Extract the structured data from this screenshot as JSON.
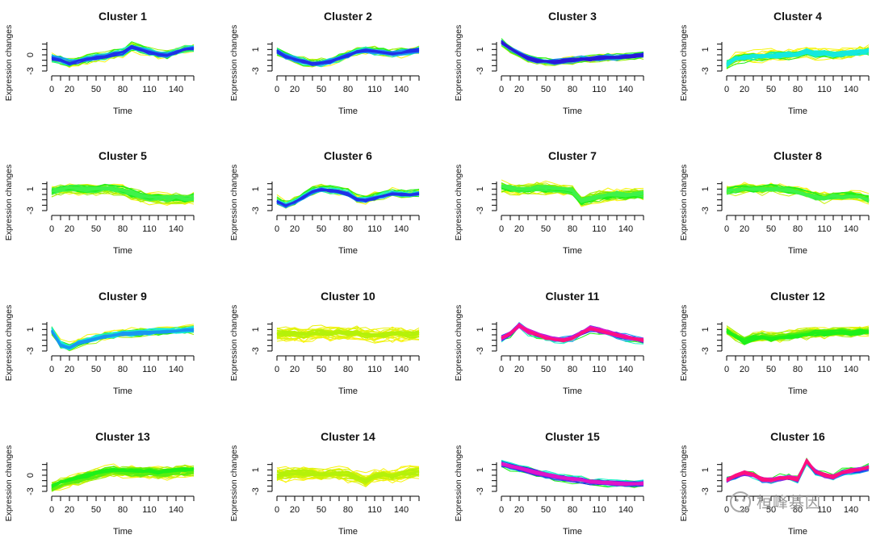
{
  "chart_data": {
    "type": "line",
    "layout": "4x4 grid of small multiples",
    "shared": {
      "xlabel": "Time",
      "ylabel": "Expression changes",
      "x_ticks": [
        0,
        20,
        50,
        80,
        110,
        140
      ],
      "x_range": [
        0,
        160
      ],
      "y_range": [
        -3,
        3
      ],
      "time_points": [
        0,
        10,
        20,
        30,
        40,
        50,
        60,
        70,
        80,
        90,
        100,
        110,
        120,
        130,
        140,
        150,
        160
      ],
      "color_scale": "membership, low = yellow -> green -> cyan -> blue -> high = magenta"
    },
    "panels": [
      {
        "title": "Cluster 1",
        "y_ticks": [
          "0",
          "-3"
        ],
        "n_lines": 34,
        "noise": 0.35,
        "spread": 0.5,
        "colors": [
          "#f6f50c",
          "#9af00a",
          "#1ef01a",
          "#19f2c6",
          "#1a96f0",
          "#2030e8"
        ],
        "profile": [
          -0.5,
          -0.9,
          -1.5,
          -1.1,
          -0.7,
          -0.5,
          -0.3,
          0.2,
          0.5,
          1.6,
          1.0,
          0.6,
          0.2,
          0.0,
          0.6,
          1.1,
          1.3
        ]
      },
      {
        "title": "Cluster 2",
        "y_ticks": [
          "1",
          "-3"
        ],
        "n_lines": 34,
        "noise": 0.35,
        "spread": 0.5,
        "colors": [
          "#f6f50c",
          "#9af00a",
          "#1ef01a",
          "#19f2c6",
          "#1a96f0",
          "#2030e8"
        ],
        "profile": [
          0.7,
          -0.2,
          -0.8,
          -1.3,
          -1.6,
          -1.5,
          -1.2,
          -0.6,
          0.0,
          0.6,
          0.8,
          0.7,
          0.5,
          0.3,
          0.4,
          0.7,
          0.9
        ]
      },
      {
        "title": "Cluster 3",
        "y_ticks": [
          "1",
          "-3"
        ],
        "n_lines": 36,
        "noise": 0.3,
        "spread": 0.45,
        "colors": [
          "#f6f50c",
          "#9af00a",
          "#1ef01a",
          "#19f2c6",
          "#1a96f0",
          "#2030e8",
          "#2a18d8"
        ],
        "profile": [
          2.4,
          1.2,
          0.2,
          -0.5,
          -1.0,
          -1.2,
          -1.3,
          -1.1,
          -1.0,
          -0.7,
          -0.8,
          -0.6,
          -0.4,
          -0.5,
          -0.3,
          -0.1,
          0.0
        ]
      },
      {
        "title": "Cluster 4",
        "y_ticks": [
          "1",
          "-3"
        ],
        "n_lines": 36,
        "noise": 0.45,
        "spread": 0.6,
        "colors": [
          "#f6f50c",
          "#c8f208",
          "#58ee10",
          "#1ef01a",
          "#19f2c6",
          "#14e8e0"
        ],
        "profile": [
          -1.8,
          -0.8,
          -0.6,
          -0.4,
          -0.3,
          -0.2,
          -0.2,
          0.0,
          0.1,
          0.6,
          0.1,
          0.1,
          0.0,
          0.1,
          0.3,
          0.5,
          0.6
        ]
      },
      {
        "title": "Cluster 5",
        "y_ticks": [
          "1",
          "-3"
        ],
        "n_lines": 38,
        "noise": 0.45,
        "spread": 0.7,
        "colors": [
          "#f6f50c",
          "#c8f208",
          "#9af00a",
          "#58ee10",
          "#1ef01a",
          "#3ff24a"
        ],
        "profile": [
          0.6,
          0.9,
          1.2,
          1.1,
          0.9,
          1.0,
          1.2,
          1.0,
          0.8,
          0.2,
          -0.3,
          -0.6,
          -0.5,
          -0.7,
          -0.5,
          -0.8,
          -0.6
        ]
      },
      {
        "title": "Cluster 6",
        "y_ticks": [
          "1",
          "-3"
        ],
        "n_lines": 34,
        "noise": 0.35,
        "spread": 0.5,
        "colors": [
          "#f6f50c",
          "#9af00a",
          "#1ef01a",
          "#19f2c6",
          "#1a96f0",
          "#2030e8"
        ],
        "profile": [
          -1.2,
          -2.0,
          -1.4,
          -0.4,
          0.6,
          1.0,
          0.8,
          0.6,
          0.2,
          -0.8,
          -1.0,
          -0.6,
          -0.2,
          0.2,
          0.1,
          0.0,
          0.2
        ]
      },
      {
        "title": "Cluster 7",
        "y_ticks": [
          "1",
          "-3"
        ],
        "n_lines": 38,
        "noise": 0.45,
        "spread": 0.6,
        "colors": [
          "#f6f50c",
          "#c8f208",
          "#9af00a",
          "#58ee10",
          "#1ef01a",
          "#3ff24a"
        ],
        "profile": [
          1.4,
          1.1,
          0.9,
          1.0,
          1.2,
          1.1,
          1.0,
          0.9,
          0.6,
          -1.2,
          -0.8,
          -0.4,
          -0.2,
          0.0,
          -0.2,
          0.1,
          0.0
        ]
      },
      {
        "title": "Cluster 8",
        "y_ticks": [
          "1",
          "-3"
        ],
        "n_lines": 38,
        "noise": 0.45,
        "spread": 0.6,
        "colors": [
          "#f6f50c",
          "#c8f208",
          "#9af00a",
          "#58ee10",
          "#1ef01a",
          "#3ff24a"
        ],
        "profile": [
          0.6,
          0.8,
          1.1,
          1.0,
          0.9,
          1.2,
          1.0,
          0.8,
          0.5,
          0.0,
          -0.4,
          -0.6,
          -0.3,
          -0.4,
          -0.2,
          -0.5,
          -1.0
        ]
      },
      {
        "title": "Cluster 9",
        "y_ticks": [
          "1",
          "-3"
        ],
        "n_lines": 36,
        "noise": 0.35,
        "spread": 0.5,
        "colors": [
          "#f6f50c",
          "#9af00a",
          "#1ef01a",
          "#19f2c6",
          "#14e8e0",
          "#1a96f0"
        ],
        "profile": [
          0.8,
          -1.8,
          -2.4,
          -1.5,
          -1.0,
          -0.6,
          -0.3,
          0.0,
          0.2,
          0.3,
          0.4,
          0.5,
          0.6,
          0.7,
          0.8,
          0.9,
          1.0
        ]
      },
      {
        "title": "Cluster 10",
        "y_ticks": [
          "1",
          "-3"
        ],
        "n_lines": 34,
        "noise": 0.55,
        "spread": 0.7,
        "colors": [
          "#f8f30c",
          "#eaf20c",
          "#d8f30a",
          "#c8f208",
          "#b4f10a"
        ],
        "profile": [
          0.2,
          0.3,
          0.2,
          0.0,
          0.3,
          0.4,
          0.2,
          0.3,
          0.2,
          0.4,
          0.0,
          -0.2,
          0.0,
          0.2,
          0.1,
          0.0,
          0.2
        ]
      },
      {
        "title": "Cluster 11",
        "y_ticks": [
          "1",
          "-3"
        ],
        "n_lines": 34,
        "noise": 0.28,
        "spread": 0.4,
        "colors": [
          "#1ef01a",
          "#19f2c6",
          "#1a96f0",
          "#2030e8",
          "#8a20e0",
          "#e014c8",
          "#ff1080"
        ],
        "profile": [
          -0.6,
          0.2,
          1.8,
          0.6,
          0.0,
          -0.5,
          -0.8,
          -1.0,
          -0.6,
          0.4,
          1.2,
          0.8,
          0.4,
          0.0,
          -0.4,
          -0.8,
          -1.0
        ]
      },
      {
        "title": "Cluster 12",
        "y_ticks": [
          "1",
          "-3"
        ],
        "n_lines": 36,
        "noise": 0.45,
        "spread": 0.6,
        "colors": [
          "#f6f50c",
          "#c8f208",
          "#9af00a",
          "#58ee10",
          "#1ef01a"
        ],
        "profile": [
          0.8,
          -0.2,
          -1.2,
          -0.6,
          -0.4,
          -0.6,
          -0.4,
          -0.2,
          0.0,
          0.2,
          0.4,
          0.3,
          0.4,
          0.5,
          0.4,
          0.6,
          0.5
        ]
      },
      {
        "title": "Cluster 13",
        "y_ticks": [
          "0",
          "-3"
        ],
        "n_lines": 38,
        "noise": 0.45,
        "spread": 0.7,
        "colors": [
          "#f6f50c",
          "#c8f208",
          "#9af00a",
          "#58ee10",
          "#1ef01a"
        ],
        "profile": [
          -2.2,
          -1.4,
          -1.0,
          -0.6,
          -0.2,
          0.3,
          0.6,
          0.8,
          0.8,
          0.7,
          0.6,
          0.7,
          0.5,
          0.6,
          0.8,
          0.9,
          1.0
        ]
      },
      {
        "title": "Cluster 14",
        "y_ticks": [
          "1",
          "-3"
        ],
        "n_lines": 32,
        "noise": 0.55,
        "spread": 0.7,
        "colors": [
          "#f8f30c",
          "#eaf20c",
          "#d8f30a",
          "#c8f208",
          "#b4f10a"
        ],
        "profile": [
          0.0,
          0.2,
          0.3,
          0.4,
          0.2,
          0.1,
          0.3,
          0.2,
          0.1,
          -0.4,
          -1.0,
          -0.2,
          0.0,
          -0.2,
          0.2,
          0.4,
          0.6
        ]
      },
      {
        "title": "Cluster 15",
        "y_ticks": [
          "1",
          "-3"
        ],
        "n_lines": 34,
        "noise": 0.28,
        "spread": 0.45,
        "colors": [
          "#1ef01a",
          "#19f2c6",
          "#14e8e0",
          "#1a96f0",
          "#2030e8",
          "#8a20e0",
          "#e014c8"
        ],
        "profile": [
          2.0,
          1.6,
          1.2,
          0.8,
          0.4,
          0.0,
          -0.3,
          -0.6,
          -0.8,
          -1.0,
          -1.3,
          -1.4,
          -1.5,
          -1.6,
          -1.7,
          -1.7,
          -1.6
        ]
      },
      {
        "title": "Cluster 16",
        "y_ticks": [
          "1",
          "-3"
        ],
        "n_lines": 34,
        "noise": 0.3,
        "spread": 0.45,
        "colors": [
          "#1ef01a",
          "#19f2c6",
          "#1a96f0",
          "#2030e8",
          "#8a20e0",
          "#e014c8",
          "#ff1080"
        ],
        "profile": [
          -1.0,
          -0.2,
          0.4,
          0.0,
          -0.8,
          -1.0,
          -0.6,
          -0.4,
          -0.8,
          2.6,
          0.6,
          0.0,
          -0.4,
          0.4,
          0.8,
          1.0,
          1.4
        ]
      }
    ]
  },
  "watermark": {
    "text": "桓峰基因",
    "icon": "wechat-icon"
  }
}
